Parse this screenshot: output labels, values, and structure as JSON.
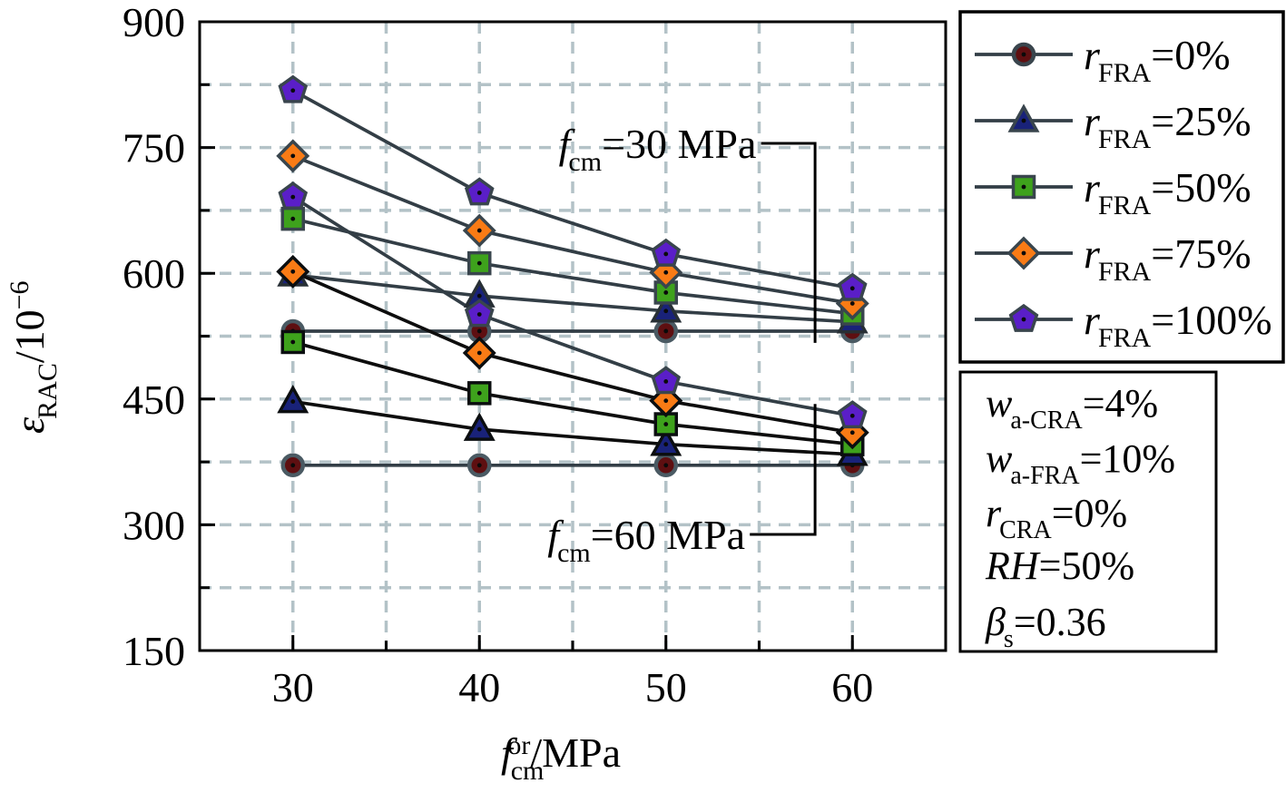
{
  "figure_title": "",
  "chart_data": {
    "type": "line",
    "x": [
      30,
      40,
      50,
      60
    ],
    "xlabel_parts": [
      [
        "f",
        "i"
      ],
      [
        "cm",
        "sub"
      ],
      [
        "or",
        "sup2"
      ],
      [
        "/MPa",
        ""
      ]
    ],
    "ylabel_parts": [
      [
        "ε",
        "i"
      ],
      [
        "RAC",
        "sub"
      ],
      [
        "/10",
        ""
      ],
      [
        "−6",
        "sup"
      ]
    ],
    "xlim": [
      25,
      65
    ],
    "ylim": [
      150,
      900
    ],
    "xticks": [
      30,
      40,
      50,
      60
    ],
    "xticks_minor": [
      35,
      45,
      55
    ],
    "yticks": [
      150,
      300,
      450,
      600,
      750,
      900
    ],
    "yticks_minor": [
      225,
      375,
      525,
      675,
      825
    ],
    "grid": {
      "x_from": 30,
      "x_to": 60,
      "x_step": 5,
      "y_from": 225,
      "y_to": 825,
      "y_step": 75,
      "color": "#b3c2c7"
    },
    "frame_color": "#000000",
    "marker_shapes": {
      "circle": {
        "fill": "#5e0f11"
      },
      "triangle": {
        "fill": "#192279"
      },
      "square": {
        "fill": "#3ea21c"
      },
      "diamond": {
        "fill": "#f97b15"
      },
      "pentagon": {
        "fill": "#5a1ec8"
      }
    },
    "groups": [
      {
        "name": "fcm30",
        "series": [
          {
            "r_fra": "0%",
            "marker": "circle",
            "values": [
              531,
              531,
              531,
              531
            ],
            "line_color": "#333e46",
            "marker_stroke": "#4a5a63"
          },
          {
            "r_fra": "25%",
            "marker": "triangle",
            "values": [
              598,
              573,
              555,
              542
            ],
            "line_color": "#333e46",
            "marker_stroke": "#272f35"
          },
          {
            "r_fra": "50%",
            "marker": "square",
            "values": [
              665,
              612,
              577,
              552
            ],
            "line_color": "#333e46",
            "marker_stroke": "#39454d"
          },
          {
            "r_fra": "75%",
            "marker": "diamond",
            "values": [
              740,
              651,
              601,
              564
            ],
            "line_color": "#333e46",
            "marker_stroke": "#39454d"
          },
          {
            "r_fra": "100%",
            "marker": "pentagon",
            "values": [
              818,
              696,
              623,
              582
            ],
            "line_color": "#333e46",
            "marker_stroke": "#39454d"
          }
        ]
      },
      {
        "name": "fcm60",
        "series": [
          {
            "r_fra": "0%",
            "marker": "circle",
            "values": [
              371,
              371,
              371,
              371
            ],
            "line_color": "#333e46",
            "marker_stroke": "#4a5a63"
          },
          {
            "r_fra": "25%",
            "marker": "triangle",
            "values": [
              447,
              414,
              396,
              384
            ],
            "line_color": "#0d0d0d",
            "marker_stroke": "#0b0e10"
          },
          {
            "r_fra": "50%",
            "marker": "square",
            "values": [
              518,
              457,
              420,
              396
            ],
            "line_color": "#0d0d0d",
            "marker_stroke": "#0b0e10"
          },
          {
            "r_fra": "75%",
            "marker": "diamond",
            "values": [
              602,
              505,
              448,
              410
            ],
            "line_color": "#0d0d0d",
            "marker_stroke": "#0b0e10"
          },
          {
            "r_fra": "100%",
            "marker": "pentagon",
            "values": [
              691,
              551,
              471,
              430
            ],
            "line_color": "#333e46",
            "marker_stroke": "#39454d"
          }
        ]
      }
    ],
    "legend": {
      "position": "top-right",
      "line_color": "#333e46",
      "entries": [
        {
          "marker": "circle",
          "label_parts": [
            [
              "r",
              "i"
            ],
            [
              "FRA",
              "sub"
            ],
            [
              "=0%",
              ""
            ]
          ]
        },
        {
          "marker": "triangle",
          "label_parts": [
            [
              "r",
              "i"
            ],
            [
              "FRA",
              "sub"
            ],
            [
              "=25%",
              ""
            ]
          ]
        },
        {
          "marker": "square",
          "label_parts": [
            [
              "r",
              "i"
            ],
            [
              "FRA",
              "sub"
            ],
            [
              "=50%",
              ""
            ]
          ]
        },
        {
          "marker": "diamond",
          "label_parts": [
            [
              "r",
              "i"
            ],
            [
              "FRA",
              "sub"
            ],
            [
              "=75%",
              ""
            ]
          ]
        },
        {
          "marker": "pentagon",
          "label_parts": [
            [
              "r",
              "i"
            ],
            [
              "FRA",
              "sub"
            ],
            [
              "=100%",
              ""
            ]
          ]
        }
      ]
    },
    "params_box": [
      [
        [
          "w",
          "i"
        ],
        [
          "a-CRA",
          "sub"
        ],
        [
          "=4%",
          ""
        ]
      ],
      [
        [
          "w",
          "i"
        ],
        [
          "a-FRA",
          "sub"
        ],
        [
          "=10%",
          ""
        ]
      ],
      [
        [
          "r",
          "i"
        ],
        [
          "CRA",
          "sub"
        ],
        [
          "=0%",
          ""
        ]
      ],
      [
        [
          "RH",
          "i"
        ],
        [
          "=50%",
          ""
        ]
      ],
      [
        [
          "β",
          "i"
        ],
        [
          "s",
          "sub"
        ],
        [
          "=0.36",
          ""
        ]
      ]
    ],
    "annotations": [
      {
        "label_parts": [
          [
            "f",
            "i"
          ],
          [
            "cm",
            "sub"
          ],
          [
            "=30 MPa",
            ""
          ]
        ],
        "text_pos": [
          54.85,
          755
        ],
        "bracket": [
          [
            55.1,
            755
          ],
          [
            58.0,
            755
          ],
          [
            58.0,
            517
          ]
        ]
      },
      {
        "label_parts": [
          [
            "f",
            "i"
          ],
          [
            "cm",
            "sub"
          ],
          [
            "=60 MPa",
            ""
          ]
        ],
        "text_pos": [
          54.25,
          288.5
        ],
        "bracket": [
          [
            54.5,
            288.5
          ],
          [
            58.0,
            288.5
          ],
          [
            58.0,
            444
          ]
        ]
      }
    ]
  }
}
